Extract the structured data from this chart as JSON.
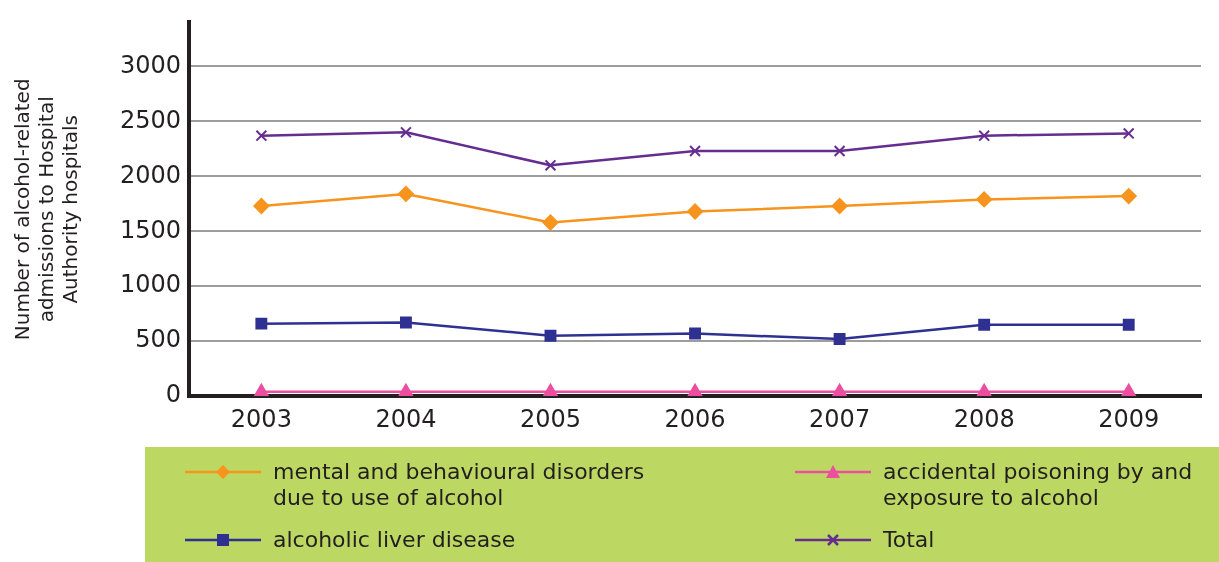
{
  "chart_data": {
    "type": "line",
    "ylabel": "Number of alcohol-related admissions to Hospital Authority hospitals",
    "categories": [
      "2003",
      "2004",
      "2005",
      "2006",
      "2007",
      "2008",
      "2009"
    ],
    "series": [
      {
        "name": "mental and behavioural disorders due to use of alcohol",
        "color": "#f7941d",
        "marker": "diamond",
        "values": [
          1730,
          1840,
          1580,
          1680,
          1730,
          1790,
          1820
        ]
      },
      {
        "name": "alcoholic liver disease",
        "color": "#2e3192",
        "marker": "square",
        "values": [
          660,
          670,
          550,
          570,
          520,
          650,
          650
        ]
      },
      {
        "name": "accidental poisoning by and exposure to alcohol",
        "color": "#ec4fa0",
        "marker": "triangle",
        "values": [
          40,
          40,
          40,
          40,
          40,
          40,
          40
        ]
      },
      {
        "name": "Total",
        "color": "#662d91",
        "marker": "cross",
        "values": [
          2370,
          2400,
          2100,
          2230,
          2230,
          2370,
          2390
        ]
      }
    ],
    "ylim": [
      0,
      3400
    ],
    "yticks": [
      0,
      500,
      1000,
      1500,
      2000,
      2500,
      3000
    ],
    "grid": "y",
    "legend": "bottom",
    "line_style": "solid"
  }
}
